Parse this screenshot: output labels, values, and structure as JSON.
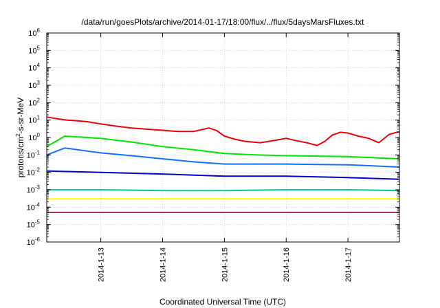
{
  "chart_data": {
    "type": "line",
    "title": "/data/run/goesPlots/archive/2014-01-17/18:00/flux/../flux/5daysMarsFluxes.txt",
    "xlabel": "Coordinated Universal Time (UTC)",
    "ylabel": "protons/cm²-s-sr-MeV",
    "ylabel_parts": {
      "pre": "protons/cm",
      "sup": "2",
      "post": "-s-sr-MeV"
    },
    "y_scale": "log",
    "ylim": [
      1e-06,
      1000000.0
    ],
    "y_ticks": [
      {
        "base": "10",
        "exp": "-6",
        "value": 1e-06
      },
      {
        "base": "10",
        "exp": "-5",
        "value": 1e-05
      },
      {
        "base": "10",
        "exp": "-4",
        "value": 0.0001
      },
      {
        "base": "10",
        "exp": "-3",
        "value": 0.001
      },
      {
        "base": "10",
        "exp": "-2",
        "value": 0.01
      },
      {
        "base": "10",
        "exp": "-1",
        "value": 0.1
      },
      {
        "base": "10",
        "exp": "0",
        "value": 1
      },
      {
        "base": "10",
        "exp": "1",
        "value": 10
      },
      {
        "base": "10",
        "exp": "2",
        "value": 100
      },
      {
        "base": "10",
        "exp": "3",
        "value": 1000
      },
      {
        "base": "10",
        "exp": "4",
        "value": 10000
      },
      {
        "base": "10",
        "exp": "5",
        "value": 100000
      },
      {
        "base": "10",
        "exp": "6",
        "value": 1000000
      }
    ],
    "xlim": [
      "2014-01-12T03:00",
      "2014-01-17T20:00"
    ],
    "x_ticks": [
      {
        "label": "2014-1-13",
        "value": "2014-01-13T00:00"
      },
      {
        "label": "2014-1-14",
        "value": "2014-01-14T00:00"
      },
      {
        "label": "2014-1-15",
        "value": "2014-01-15T00:00"
      },
      {
        "label": "2014-1-16",
        "value": "2014-01-16T00:00"
      },
      {
        "label": "2014-1-17",
        "value": "2014-01-17T00:00"
      }
    ],
    "grid": true,
    "legend": "none",
    "series": [
      {
        "color": "#e8000b",
        "points": [
          [
            "2014-01-12T03:00",
            15
          ],
          [
            "2014-01-12T07:00",
            12
          ],
          [
            "2014-01-12T11:00",
            10
          ],
          [
            "2014-01-12T15:00",
            9
          ],
          [
            "2014-01-12T19:00",
            8
          ],
          [
            "2014-01-13T00:00",
            6
          ],
          [
            "2014-01-13T06:00",
            4.5
          ],
          [
            "2014-01-13T12:00",
            3.5
          ],
          [
            "2014-01-13T18:00",
            3
          ],
          [
            "2014-01-14T00:00",
            2.6
          ],
          [
            "2014-01-14T06:00",
            2.2
          ],
          [
            "2014-01-14T12:00",
            2.2
          ],
          [
            "2014-01-14T15:00",
            2.8
          ],
          [
            "2014-01-14T18:00",
            3.5
          ],
          [
            "2014-01-14T21:00",
            2.5
          ],
          [
            "2014-01-15T00:00",
            1.2
          ],
          [
            "2014-01-15T04:00",
            0.8
          ],
          [
            "2014-01-15T08:00",
            0.6
          ],
          [
            "2014-01-15T14:00",
            0.5
          ],
          [
            "2014-01-15T20:00",
            0.7
          ],
          [
            "2014-01-16T00:00",
            0.9
          ],
          [
            "2014-01-16T04:00",
            0.65
          ],
          [
            "2014-01-16T08:00",
            0.5
          ],
          [
            "2014-01-16T12:00",
            0.35
          ],
          [
            "2014-01-16T15:00",
            0.6
          ],
          [
            "2014-01-16T18:00",
            1.4
          ],
          [
            "2014-01-16T21:00",
            2.0
          ],
          [
            "2014-01-17T00:00",
            1.8
          ],
          [
            "2014-01-17T04:00",
            1.2
          ],
          [
            "2014-01-17T08:00",
            0.9
          ],
          [
            "2014-01-17T12:00",
            0.5
          ],
          [
            "2014-01-17T16:00",
            1.5
          ],
          [
            "2014-01-17T20:00",
            2.2
          ]
        ]
      },
      {
        "color": "#00e400",
        "points": [
          [
            "2014-01-12T03:00",
            0.3
          ],
          [
            "2014-01-12T10:00",
            1.2
          ],
          [
            "2014-01-13T00:00",
            0.9
          ],
          [
            "2014-01-13T12:00",
            0.55
          ],
          [
            "2014-01-14T00:00",
            0.3
          ],
          [
            "2014-01-14T12:00",
            0.2
          ],
          [
            "2014-01-15T00:00",
            0.12
          ],
          [
            "2014-01-15T12:00",
            0.1
          ],
          [
            "2014-01-16T00:00",
            0.09
          ],
          [
            "2014-01-16T12:00",
            0.085
          ],
          [
            "2014-01-17T00:00",
            0.08
          ],
          [
            "2014-01-17T20:00",
            0.06
          ]
        ]
      },
      {
        "color": "#1170ff",
        "points": [
          [
            "2014-01-12T03:00",
            0.1
          ],
          [
            "2014-01-12T10:00",
            0.25
          ],
          [
            "2014-01-13T00:00",
            0.13
          ],
          [
            "2014-01-13T12:00",
            0.09
          ],
          [
            "2014-01-14T00:00",
            0.06
          ],
          [
            "2014-01-14T12:00",
            0.04
          ],
          [
            "2014-01-15T00:00",
            0.03
          ],
          [
            "2014-01-15T12:00",
            0.03
          ],
          [
            "2014-01-16T00:00",
            0.03
          ],
          [
            "2014-01-16T12:00",
            0.028
          ],
          [
            "2014-01-17T00:00",
            0.027
          ],
          [
            "2014-01-17T20:00",
            0.02
          ]
        ]
      },
      {
        "color": "#0000c8",
        "points": [
          [
            "2014-01-12T03:00",
            0.012
          ],
          [
            "2014-01-13T00:00",
            0.01
          ],
          [
            "2014-01-14T00:00",
            0.008
          ],
          [
            "2014-01-15T00:00",
            0.006
          ],
          [
            "2014-01-16T00:00",
            0.006
          ],
          [
            "2014-01-17T00:00",
            0.005
          ],
          [
            "2014-01-17T20:00",
            0.004
          ]
        ]
      },
      {
        "color": "#00c8a0",
        "points": [
          [
            "2014-01-12T03:00",
            0.001
          ],
          [
            "2014-01-13T00:00",
            0.001
          ],
          [
            "2014-01-14T00:00",
            0.0009
          ],
          [
            "2014-01-15T00:00",
            0.0009
          ],
          [
            "2014-01-16T00:00",
            0.001
          ],
          [
            "2014-01-17T00:00",
            0.001
          ],
          [
            "2014-01-17T20:00",
            0.0009
          ]
        ]
      },
      {
        "color": "#ffff00",
        "points": [
          [
            "2014-01-12T03:00",
            0.0003
          ],
          [
            "2014-01-13T00:00",
            0.0003
          ],
          [
            "2014-01-14T00:00",
            0.0003
          ],
          [
            "2014-01-15T00:00",
            0.0003
          ],
          [
            "2014-01-16T00:00",
            0.0003
          ],
          [
            "2014-01-17T00:00",
            0.0003
          ],
          [
            "2014-01-17T20:00",
            0.0003
          ]
        ]
      },
      {
        "color": "#a0306e",
        "points": [
          [
            "2014-01-12T03:00",
            5e-05
          ],
          [
            "2014-01-13T00:00",
            5e-05
          ],
          [
            "2014-01-14T00:00",
            5e-05
          ],
          [
            "2014-01-15T00:00",
            5e-05
          ],
          [
            "2014-01-16T00:00",
            5e-05
          ],
          [
            "2014-01-17T00:00",
            5e-05
          ],
          [
            "2014-01-17T20:00",
            5e-05
          ]
        ]
      }
    ]
  }
}
